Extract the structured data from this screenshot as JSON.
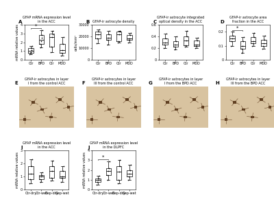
{
  "chart_data": [
    {
      "type": "box",
      "panel": "A",
      "title": "GFAP mRNA expression level in the ACC",
      "y_label": "mRNA relative values",
      "categories": [
        "Ctr",
        "BPD",
        "Ctr",
        "MDD"
      ],
      "color": "#000000",
      "boxes": [
        {
          "whislo": 0.6,
          "q1": 0.8,
          "med": 1.0,
          "q3": 1.3,
          "whishi": 1.6
        },
        {
          "whislo": 1.4,
          "q1": 1.8,
          "med": 2.3,
          "q3": 2.8,
          "whishi": 3.4
        },
        {
          "whislo": 0.9,
          "q1": 1.5,
          "med": 2.6,
          "q3": 3.0,
          "whishi": 3.3
        },
        {
          "whislo": 0.5,
          "q1": 0.8,
          "med": 1.1,
          "q3": 1.8,
          "whishi": 2.6
        }
      ],
      "points": [
        [
          0.6,
          0.8,
          0.9,
          1.1,
          1.3,
          1.6
        ],
        [
          1.4,
          1.8,
          2.1,
          2.5,
          2.8,
          3.4
        ],
        [
          0.9,
          1.5,
          2.6,
          2.9,
          3.3
        ],
        [
          0.5,
          0.8,
          1.1,
          1.8,
          2.6
        ]
      ],
      "ylim": [
        0,
        4
      ],
      "yticks": [
        0,
        1,
        2,
        3,
        4
      ],
      "annotations": [
        {
          "text": "*",
          "between": [
            0,
            1
          ]
        }
      ]
    },
    {
      "type": "box",
      "panel": "B",
      "title": "GFAP-ir astrocyte density",
      "y_label": "cells/mm²",
      "categories": [
        "Ctr",
        "BPD",
        "Ctr",
        "MDD"
      ],
      "color": "#000000",
      "boxes": [
        {
          "whislo": 14000,
          "q1": 18000,
          "med": 22000,
          "q3": 24000,
          "whishi": 26000
        },
        {
          "whislo": 13000,
          "q1": 17000,
          "med": 19000,
          "q3": 22000,
          "whishi": 25000
        },
        {
          "whislo": 15000,
          "q1": 16000,
          "med": 22000,
          "q3": 24000,
          "whishi": 25000
        },
        {
          "whislo": 15000,
          "q1": 17000,
          "med": 18000,
          "q3": 21000,
          "whishi": 23000
        }
      ],
      "points": [
        [
          14000,
          18000,
          22000,
          24000,
          26000
        ],
        [
          13000,
          17000,
          19000,
          22000,
          25000
        ],
        [
          15000,
          16000,
          22000,
          24000,
          25000
        ],
        [
          15000,
          17000,
          18000,
          21000,
          23000
        ]
      ],
      "ylim": [
        0,
        30000
      ],
      "yticks": [
        0,
        10000,
        20000,
        30000
      ]
    },
    {
      "type": "box",
      "panel": "C",
      "title": "GFAP-ir astrocyte integrated optical density in the ACC",
      "categories": [
        "Ctr",
        "BPD",
        "Ctr",
        "MDD"
      ],
      "color": "#000000",
      "boxes": [
        {
          "whislo": 0.2,
          "q1": 0.26,
          "med": 0.3,
          "q3": 0.36,
          "whishi": 0.45
        },
        {
          "whislo": 0.18,
          "q1": 0.22,
          "med": 0.26,
          "q3": 0.32,
          "whishi": 0.4
        },
        {
          "whislo": 0.22,
          "q1": 0.25,
          "med": 0.33,
          "q3": 0.4,
          "whishi": 0.5
        },
        {
          "whislo": 0.2,
          "q1": 0.24,
          "med": 0.26,
          "q3": 0.33,
          "whishi": 0.38
        }
      ],
      "points": [
        [
          0.2,
          0.26,
          0.3,
          0.36,
          0.45
        ],
        [
          0.18,
          0.22,
          0.26,
          0.32,
          0.4
        ],
        [
          0.22,
          0.25,
          0.33,
          0.4,
          0.5
        ],
        [
          0.2,
          0.24,
          0.26,
          0.33,
          0.38
        ]
      ],
      "ylim": [
        0,
        0.6
      ],
      "yticks": [
        0,
        0.2,
        0.4,
        0.6
      ]
    },
    {
      "type": "box",
      "panel": "D",
      "title": "GFAP-ir astrocyte area fraction in the ACC",
      "categories": [
        "Ctr",
        "BPD",
        "Ctr",
        "MDD"
      ],
      "color": "#000000",
      "boxes": [
        {
          "whislo": 0.1,
          "q1": 0.13,
          "med": 0.15,
          "q3": 0.17,
          "whishi": 0.2
        },
        {
          "whislo": 0.05,
          "q1": 0.08,
          "med": 0.1,
          "q3": 0.13,
          "whishi": 0.16
        },
        {
          "whislo": 0.1,
          "q1": 0.12,
          "med": 0.13,
          "q3": 0.16,
          "whishi": 0.19
        },
        {
          "whislo": 0.08,
          "q1": 0.1,
          "med": 0.12,
          "q3": 0.14,
          "whishi": 0.17
        }
      ],
      "points": [
        [
          0.1,
          0.13,
          0.15,
          0.17,
          0.2
        ],
        [
          0.05,
          0.08,
          0.1,
          0.13,
          0.16
        ],
        [
          0.1,
          0.12,
          0.13,
          0.16,
          0.19
        ],
        [
          0.08,
          0.1,
          0.12,
          0.14,
          0.17
        ]
      ],
      "ylim": [
        0,
        0.25
      ],
      "yticks": [
        0,
        0.1,
        0.2
      ],
      "annotations": [
        {
          "text": "*",
          "between": [
            0,
            1
          ]
        }
      ]
    },
    {
      "type": "box",
      "panel": "I",
      "title": "GFAP mRNA expression level in the ACC",
      "y_label": "mRNA relative values",
      "categories": [
        "Ctr-dry",
        "Ctr-wet",
        "Dep-dry",
        "Dep-wet"
      ],
      "color": "#000000",
      "boxes": [
        {
          "whislo": 0.5,
          "q1": 0.8,
          "med": 1.2,
          "q3": 1.8,
          "whishi": 2.3
        },
        {
          "whislo": 0.6,
          "q1": 0.8,
          "med": 1.0,
          "q3": 1.1,
          "whishi": 1.3
        },
        {
          "whislo": 0.7,
          "q1": 0.9,
          "med": 1.4,
          "q3": 1.8,
          "whishi": 2.2
        },
        {
          "whislo": 0.6,
          "q1": 0.9,
          "med": 1.0,
          "q3": 1.4,
          "whishi": 1.8
        }
      ],
      "points": [
        [
          0.5,
          0.8,
          1.2,
          1.8,
          2.3
        ],
        [
          0.6,
          0.8,
          1.0,
          1.1,
          1.3
        ],
        [
          0.7,
          0.9,
          1.4,
          1.8,
          2.2
        ],
        [
          0.6,
          0.9,
          1.0,
          1.4,
          1.8
        ]
      ],
      "ylim": [
        0,
        3
      ],
      "yticks": [
        0,
        1,
        2,
        3
      ]
    },
    {
      "type": "box",
      "panel": "J",
      "title": "GFAP mRNA expression level in the DLPFC",
      "y_label": "mRNA relative values",
      "categories": [
        "Ctr-dry",
        "Ctr-wet",
        "Dep-dry",
        "Dep-wet"
      ],
      "color": "#000000",
      "boxes": [
        {
          "whislo": 0.5,
          "q1": 0.8,
          "med": 1.0,
          "q3": 1.1,
          "whishi": 1.4
        },
        {
          "whislo": 1.0,
          "q1": 1.5,
          "med": 1.9,
          "q3": 2.2,
          "whishi": 2.9
        },
        {
          "whislo": 0.6,
          "q1": 1.0,
          "med": 1.8,
          "q3": 2.4,
          "whishi": 3.0
        },
        {
          "whislo": 1.0,
          "q1": 1.3,
          "med": 1.6,
          "q3": 2.0,
          "whishi": 2.5
        }
      ],
      "points": [
        [
          0.5,
          0.8,
          1.0,
          1.1,
          1.4
        ],
        [
          1.0,
          1.5,
          1.9,
          2.2,
          2.9
        ],
        [
          0.6,
          1.0,
          1.8,
          2.4,
          3.0
        ],
        [
          1.0,
          1.3,
          1.6,
          2.0,
          2.5
        ]
      ],
      "ylim": [
        0,
        4
      ],
      "yticks": [
        0,
        1,
        2,
        3,
        4
      ],
      "annotations": [
        {
          "text": "*",
          "between": [
            0,
            1
          ]
        }
      ]
    }
  ],
  "images": [
    {
      "panel": "E",
      "title": "GFAP-ir astrocytes in layer I from the control ACC"
    },
    {
      "panel": "F",
      "title": "GFAP-ir astrocytes in layer III from the control ACC"
    },
    {
      "panel": "G",
      "title": "GFAP-ir astrocytes in layer I from the BPD ACC"
    },
    {
      "panel": "H",
      "title": "GFAP-ir astrocytes in layer III from the BPD ACC"
    }
  ]
}
